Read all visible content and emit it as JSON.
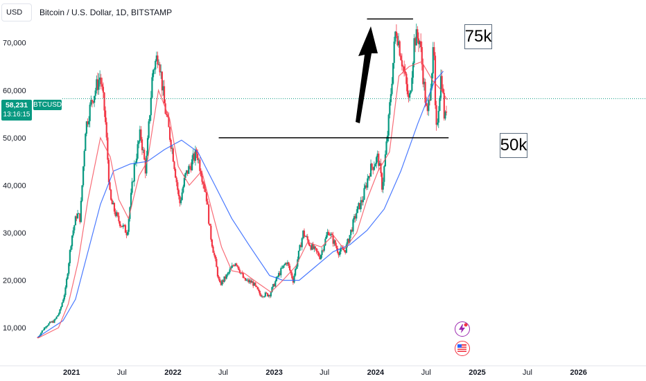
{
  "header": {
    "currency": "USD",
    "title": "Bitcoin / U.S. Dollar, 1D, BITSTAMP"
  },
  "price_tag": {
    "value": "58,231",
    "countdown": "13:16:15",
    "symbol": "BTCUSD"
  },
  "annotations": {
    "upper_label": "75k",
    "lower_label": "50k"
  },
  "colors": {
    "up": "#089981",
    "down": "#f23645",
    "ma_fast": "#f7525f",
    "ma_slow": "#2962ff",
    "price_line": "#089981",
    "annotation_line": "#000000"
  },
  "icons": [
    "lightning-icon",
    "us-flag-icon"
  ],
  "chart_data": {
    "type": "candlestick",
    "title": "Bitcoin / U.S. Dollar, 1D, BITSTAMP",
    "ylabel": "",
    "xlabel": "",
    "y_ticks": [
      "10,000",
      "20,000",
      "30,000",
      "40,000",
      "50,000",
      "60,000",
      "70,000"
    ],
    "x_ticks": [
      "2021",
      "Jul",
      "2022",
      "Jul",
      "2023",
      "Jul",
      "2024",
      "Jul",
      "2025",
      "Jul",
      "2026"
    ],
    "ylim": [
      2000,
      79000
    ],
    "xlim": [
      "2020-08-16",
      "2026-09-01"
    ],
    "current_price": 58231,
    "horizontal_levels": [
      {
        "label": "75k",
        "value": 75000,
        "from": "2023-12-01",
        "to": "2024-05-15"
      },
      {
        "label": "50k",
        "value": 50000,
        "from": "2022-06-15",
        "to": "2024-09-20"
      }
    ],
    "price_series": {
      "name": "BTCUSD",
      "points": [
        [
          "2020-09-01",
          8000
        ],
        [
          "2020-10-01",
          10500
        ],
        [
          "2020-11-01",
          11500
        ],
        [
          "2020-11-20",
          13500
        ],
        [
          "2020-12-10",
          18000
        ],
        [
          "2021-01-01",
          29000
        ],
        [
          "2021-01-20",
          34000
        ],
        [
          "2021-02-01",
          33000
        ],
        [
          "2021-02-20",
          52000
        ],
        [
          "2021-03-15",
          58000
        ],
        [
          "2021-04-14",
          63000
        ],
        [
          "2021-05-01",
          55000
        ],
        [
          "2021-05-20",
          37000
        ],
        [
          "2021-06-15",
          33000
        ],
        [
          "2021-07-20",
          30000
        ],
        [
          "2021-08-15",
          44000
        ],
        [
          "2021-09-06",
          51000
        ],
        [
          "2021-09-25",
          43000
        ],
        [
          "2021-10-20",
          64000
        ],
        [
          "2021-11-10",
          68000
        ],
        [
          "2021-12-01",
          57000
        ],
        [
          "2021-12-31",
          47000
        ],
        [
          "2022-01-25",
          36000
        ],
        [
          "2022-02-15",
          42000
        ],
        [
          "2022-03-28",
          47000
        ],
        [
          "2022-05-01",
          38000
        ],
        [
          "2022-05-15",
          30000
        ],
        [
          "2022-06-18",
          19000
        ],
        [
          "2022-07-15",
          21000
        ],
        [
          "2022-08-15",
          24000
        ],
        [
          "2022-09-15",
          20000
        ],
        [
          "2022-10-15",
          19500
        ],
        [
          "2022-11-10",
          17000
        ],
        [
          "2022-12-15",
          17000
        ],
        [
          "2023-01-15",
          21000
        ],
        [
          "2023-02-15",
          24000
        ],
        [
          "2023-03-10",
          20000
        ],
        [
          "2023-04-15",
          30000
        ],
        [
          "2023-05-15",
          27000
        ],
        [
          "2023-06-15",
          25000
        ],
        [
          "2023-07-15",
          30500
        ],
        [
          "2023-08-20",
          26000
        ],
        [
          "2023-09-15",
          26500
        ],
        [
          "2023-10-25",
          34500
        ],
        [
          "2023-11-15",
          37000
        ],
        [
          "2023-12-10",
          43000
        ],
        [
          "2024-01-10",
          46000
        ],
        [
          "2024-01-25",
          39500
        ],
        [
          "2024-02-15",
          52000
        ],
        [
          "2024-03-14",
          73500
        ],
        [
          "2024-04-15",
          63000
        ],
        [
          "2024-05-01",
          57000
        ],
        [
          "2024-05-20",
          71000
        ],
        [
          "2024-06-07",
          71000
        ],
        [
          "2024-07-05",
          54000
        ],
        [
          "2024-07-29",
          69000
        ],
        [
          "2024-08-05",
          50000
        ],
        [
          "2024-08-25",
          64000
        ],
        [
          "2024-09-06",
          53000
        ],
        [
          "2024-09-15",
          58231
        ]
      ]
    },
    "series": [
      {
        "color": "#2962ff",
        "points": [
          [
            "2020-09-01",
            8000
          ],
          [
            "2020-12-01",
            11500
          ],
          [
            "2021-01-15",
            16000
          ],
          [
            "2021-03-01",
            26000
          ],
          [
            "2021-04-15",
            36000
          ],
          [
            "2021-06-01",
            43000
          ],
          [
            "2021-08-01",
            44500
          ],
          [
            "2021-10-01",
            45000
          ],
          [
            "2021-12-01",
            47500
          ],
          [
            "2022-02-01",
            49500
          ],
          [
            "2022-04-01",
            47000
          ],
          [
            "2022-06-01",
            40000
          ],
          [
            "2022-08-01",
            33000
          ],
          [
            "2022-10-01",
            27500
          ],
          [
            "2022-12-15",
            21000
          ],
          [
            "2023-02-01",
            20000
          ],
          [
            "2023-04-01",
            20000
          ],
          [
            "2023-06-01",
            23000
          ],
          [
            "2023-08-01",
            26000
          ],
          [
            "2023-10-01",
            27500
          ],
          [
            "2023-12-01",
            30500
          ],
          [
            "2024-02-01",
            35000
          ],
          [
            "2024-04-01",
            43000
          ],
          [
            "2024-06-01",
            53000
          ],
          [
            "2024-08-01",
            62000
          ],
          [
            "2024-09-01",
            64000
          ]
        ]
      },
      {
        "color": "#f7525f",
        "points": [
          [
            "2020-09-01",
            7800
          ],
          [
            "2020-11-15",
            10000
          ],
          [
            "2020-12-20",
            15000
          ],
          [
            "2021-01-25",
            24000
          ],
          [
            "2021-03-01",
            37000
          ],
          [
            "2021-04-15",
            50000
          ],
          [
            "2021-05-20",
            46000
          ],
          [
            "2021-06-20",
            37000
          ],
          [
            "2021-07-25",
            33000
          ],
          [
            "2021-09-01",
            42000
          ],
          [
            "2021-10-01",
            45000
          ],
          [
            "2021-11-10",
            60000
          ],
          [
            "2021-12-20",
            54000
          ],
          [
            "2022-01-20",
            44000
          ],
          [
            "2022-03-01",
            40000
          ],
          [
            "2022-04-15",
            43000
          ],
          [
            "2022-05-20",
            35000
          ],
          [
            "2022-06-25",
            27000
          ],
          [
            "2022-08-01",
            22000
          ],
          [
            "2022-09-15",
            21500
          ],
          [
            "2022-11-01",
            19500
          ],
          [
            "2022-12-20",
            17500
          ],
          [
            "2023-02-01",
            20000
          ],
          [
            "2023-03-20",
            23000
          ],
          [
            "2023-05-01",
            28000
          ],
          [
            "2023-06-20",
            27000
          ],
          [
            "2023-08-01",
            29500
          ],
          [
            "2023-09-10",
            26500
          ],
          [
            "2023-10-25",
            30000
          ],
          [
            "2023-12-01",
            37000
          ],
          [
            "2024-01-10",
            43000
          ],
          [
            "2024-02-20",
            47000
          ],
          [
            "2024-03-25",
            63000
          ],
          [
            "2024-05-01",
            65000
          ],
          [
            "2024-06-15",
            66000
          ],
          [
            "2024-07-25",
            62000
          ],
          [
            "2024-08-25",
            60000
          ],
          [
            "2024-09-15",
            58000
          ]
        ]
      }
    ],
    "grid": false,
    "legend": "none"
  }
}
